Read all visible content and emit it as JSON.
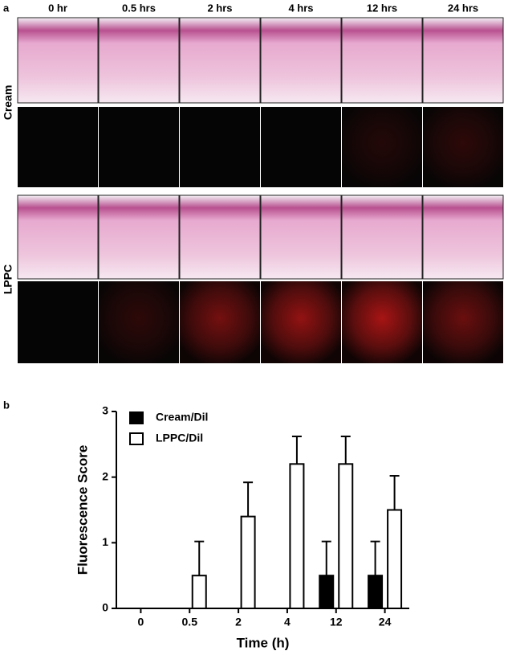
{
  "panel_a": {
    "label": "a",
    "columns": [
      "0 hr",
      "0.5 hrs",
      "2 hrs",
      "4 hrs",
      "12 hrs",
      "24 hrs"
    ],
    "rows": [
      "Cream",
      "LPPC"
    ]
  },
  "chart_data": {
    "type": "bar",
    "panel_label": "b",
    "x_label": "Time (h)",
    "y_label": "Fluorescence Score",
    "categories": [
      "0",
      "0.5",
      "2",
      "4",
      "12",
      "24"
    ],
    "series": [
      {
        "name": "Cream/Dil",
        "color": "#000000",
        "values": [
          0,
          0,
          0,
          0,
          0.5,
          0.5
        ],
        "errors": [
          0,
          0,
          0,
          0,
          0.52,
          0.52
        ]
      },
      {
        "name": "LPPC/Dil",
        "color": "#ffffff",
        "values": [
          0,
          0.5,
          1.4,
          2.2,
          2.2,
          1.5
        ],
        "errors": [
          0,
          0.52,
          0.52,
          0.42,
          0.42,
          0.52
        ]
      }
    ],
    "ylim": [
      0,
      3
    ],
    "yticks": [
      0,
      1,
      2,
      3
    ],
    "legend": "upper left"
  }
}
